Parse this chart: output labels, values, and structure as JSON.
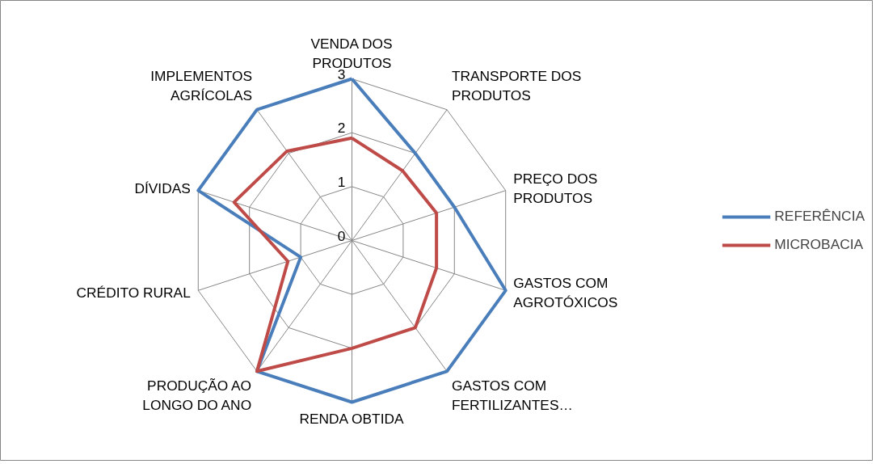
{
  "chart_data": {
    "type": "radar",
    "categories": [
      "VENDA DOS PRODUTOS",
      "TRANSPORTE DOS PRODUTOS",
      "PREÇO DOS PRODUTOS",
      "GASTOS COM AGROTÓXICOS",
      "GASTOS COM FERTILIZANTES…",
      "RENDA OBTIDA",
      "PRODUÇÃO AO LONGO DO ANO",
      "CRÉDITO RURAL",
      "DÍVIDAS",
      "IMPLEMENTOS AGRÍCOLAS"
    ],
    "series": [
      {
        "name": "REFERÊNCIA",
        "color": "#4a7ebb",
        "values": [
          3,
          2,
          2,
          3,
          3,
          3,
          3,
          1,
          3,
          3
        ]
      },
      {
        "name": "MICROBACIA",
        "color": "#be4b48",
        "values": [
          1.9,
          1.6,
          1.65,
          1.65,
          2,
          2,
          3,
          1.25,
          2.3,
          2.05
        ]
      }
    ],
    "ylim": [
      0,
      3
    ],
    "yticks": [
      0,
      1,
      2,
      3
    ],
    "grid": true,
    "legend": "right"
  }
}
